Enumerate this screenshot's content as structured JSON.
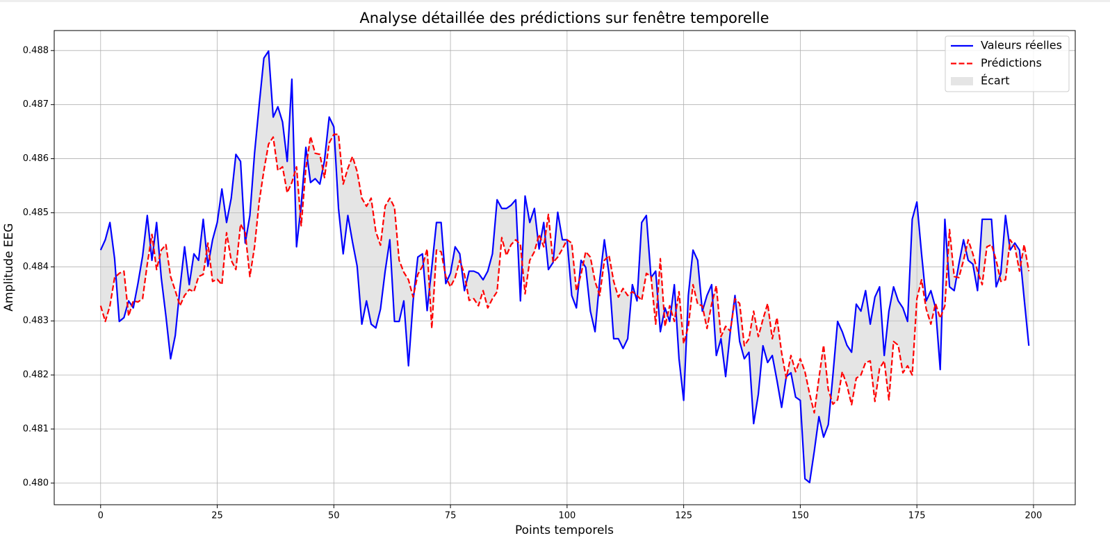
{
  "chart_data": {
    "type": "line",
    "title": "Analyse détaillée des prédictions sur fenêtre temporelle",
    "xlabel": "Points temporels",
    "ylabel": "Amplitude EEG",
    "x": [
      0,
      1,
      2,
      3,
      4,
      5,
      6,
      7,
      8,
      9,
      10,
      11,
      12,
      13,
      14,
      15,
      16,
      17,
      18,
      19,
      20,
      21,
      22,
      23,
      24,
      25,
      26,
      27,
      28,
      29,
      30,
      31,
      32,
      33,
      34,
      35,
      36,
      37,
      38,
      39,
      40,
      41,
      42,
      43,
      44,
      45,
      46,
      47,
      48,
      49,
      50,
      51,
      52,
      53,
      54,
      55,
      56,
      57,
      58,
      59,
      60,
      61,
      62,
      63,
      64,
      65,
      66,
      67,
      68,
      69,
      70,
      71,
      72,
      73,
      74,
      75,
      76,
      77,
      78,
      79,
      80,
      81,
      82,
      83,
      84,
      85,
      86,
      87,
      88,
      89,
      90,
      91,
      92,
      93,
      94,
      95,
      96,
      97,
      98,
      99,
      100,
      101,
      102,
      103,
      104,
      105,
      106,
      107,
      108,
      109,
      110,
      111,
      112,
      113,
      114,
      115,
      116,
      117,
      118,
      119,
      120,
      121,
      122,
      123,
      124,
      125,
      126,
      127,
      128,
      129,
      130,
      131,
      132,
      133,
      134,
      135,
      136,
      137,
      138,
      139,
      140,
      141,
      142,
      143,
      144,
      145,
      146,
      147,
      148,
      149,
      150,
      151,
      152,
      153,
      154,
      155,
      156,
      157,
      158,
      159,
      160,
      161,
      162,
      163,
      164,
      165,
      166,
      167,
      168,
      169,
      170,
      171,
      172,
      173,
      174,
      175,
      176,
      177,
      178,
      179,
      180,
      181,
      182,
      183,
      184,
      185,
      186,
      187,
      188,
      189,
      190,
      191,
      192,
      193,
      194,
      195,
      196,
      197,
      198,
      199
    ],
    "series": [
      {
        "name": "Valeurs réelles",
        "color": "#0000ff",
        "linestyle": "solid",
        "values": [
          0.48431,
          0.4845,
          0.48482,
          0.48415,
          0.48299,
          0.48306,
          0.48337,
          0.48324,
          0.48369,
          0.4842,
          0.48495,
          0.48412,
          0.48482,
          0.4838,
          0.48309,
          0.4823,
          0.48273,
          0.4836,
          0.48437,
          0.48367,
          0.48424,
          0.48412,
          0.48488,
          0.48401,
          0.4845,
          0.48482,
          0.48544,
          0.48482,
          0.48527,
          0.48608,
          0.48595,
          0.48444,
          0.48495,
          0.4861,
          0.487,
          0.48786,
          0.48799,
          0.48677,
          0.48696,
          0.48668,
          0.48595,
          0.48747,
          0.48437,
          0.48514,
          0.48621,
          0.48556,
          0.48563,
          0.48553,
          0.48597,
          0.48677,
          0.48659,
          0.48508,
          0.48424,
          0.48495,
          0.48446,
          0.48401,
          0.48294,
          0.48337,
          0.48294,
          0.48287,
          0.48322,
          0.48392,
          0.4845,
          0.48299,
          0.48299,
          0.48337,
          0.48217,
          0.48337,
          0.48418,
          0.48424,
          0.48319,
          0.48399,
          0.48482,
          0.48482,
          0.48369,
          0.48388,
          0.48437,
          0.48424,
          0.48356,
          0.48392,
          0.48392,
          0.48388,
          0.48376,
          0.48392,
          0.48424,
          0.48524,
          0.48508,
          0.48508,
          0.48514,
          0.48524,
          0.48337,
          0.48531,
          0.48482,
          0.48508,
          0.48433,
          0.48482,
          0.48395,
          0.48408,
          0.48501,
          0.4845,
          0.4845,
          0.48347,
          0.48324,
          0.48412,
          0.48399,
          0.48318,
          0.4828,
          0.48376,
          0.4845,
          0.48386,
          0.48267,
          0.48267,
          0.48249,
          0.48267,
          0.48367,
          0.48337,
          0.48482,
          0.48495,
          0.4838,
          0.48392,
          0.4828,
          0.48324,
          0.48299,
          0.48367,
          0.4823,
          0.48153,
          0.48347,
          0.48431,
          0.48412,
          0.48318,
          0.48347,
          0.48367,
          0.48236,
          0.48267,
          0.48197,
          0.4828,
          0.48347,
          0.48262,
          0.4823,
          0.48242,
          0.4811,
          0.48164,
          0.48254,
          0.48223,
          0.48236,
          0.4819,
          0.4814,
          0.48197,
          0.48204,
          0.48159,
          0.48153,
          0.48008,
          0.48001,
          0.48059,
          0.48123,
          0.48085,
          0.48108,
          0.482,
          0.48299,
          0.4828,
          0.48255,
          0.48242,
          0.48331,
          0.48318,
          0.48356,
          0.48294,
          0.48344,
          0.48363,
          0.48236,
          0.48318,
          0.48363,
          0.48337,
          0.48324,
          0.48299,
          0.48488,
          0.4852,
          0.48424,
          0.48337,
          0.48356,
          0.48324,
          0.4821,
          0.48488,
          0.48363,
          0.48356,
          0.48405,
          0.4845,
          0.48412,
          0.48405,
          0.48356,
          0.48488,
          0.48488,
          0.48488,
          0.48363,
          0.48388,
          0.48495,
          0.48431,
          0.48444,
          0.48431,
          0.48341,
          0.48254
        ]
      },
      {
        "name": "Prédictions",
        "color": "#ff0000",
        "linestyle": "dashed",
        "values": [
          0.48328,
          0.48299,
          0.48328,
          0.4838,
          0.48388,
          0.48392,
          0.48309,
          0.48337,
          0.48335,
          0.48341,
          0.48405,
          0.4846,
          0.48395,
          0.48431,
          0.48441,
          0.48382,
          0.48356,
          0.48328,
          0.48347,
          0.48358,
          0.48354,
          0.48382,
          0.48386,
          0.48444,
          0.48373,
          0.48377,
          0.48367,
          0.48463,
          0.48412,
          0.48395,
          0.48479,
          0.48463,
          0.48382,
          0.48437,
          0.48521,
          0.48578,
          0.48627,
          0.4864,
          0.48578,
          0.48585,
          0.48537,
          0.48556,
          0.48585,
          0.48476,
          0.48582,
          0.48641,
          0.4861,
          0.48608,
          0.48565,
          0.48629,
          0.48645,
          0.48645,
          0.48553,
          0.48582,
          0.48604,
          0.48576,
          0.48527,
          0.48512,
          0.48527,
          0.48465,
          0.4844,
          0.48512,
          0.48527,
          0.4851,
          0.48412,
          0.4839,
          0.48376,
          0.48344,
          0.48386,
          0.48401,
          0.48433,
          0.48286,
          0.48431,
          0.48428,
          0.48382,
          0.48363,
          0.4838,
          0.48412,
          0.48386,
          0.48338,
          0.48341,
          0.48328,
          0.48356,
          0.48324,
          0.48341,
          0.48354,
          0.48454,
          0.48421,
          0.48441,
          0.4845,
          0.48441,
          0.4835,
          0.48412,
          0.48428,
          0.4846,
          0.48437,
          0.48497,
          0.48408,
          0.48418,
          0.48433,
          0.4845,
          0.48444,
          0.48356,
          0.48386,
          0.48428,
          0.48418,
          0.48373,
          0.48347,
          0.48412,
          0.48421,
          0.48373,
          0.48344,
          0.4836,
          0.48347,
          0.48354,
          0.48347,
          0.48338,
          0.48388,
          0.48382,
          0.48294,
          0.48415,
          0.4829,
          0.48328,
          0.48299,
          0.48354,
          0.48258,
          0.4829,
          0.48367,
          0.48331,
          0.48328,
          0.48286,
          0.48331,
          0.48365,
          0.48271,
          0.4829,
          0.48281,
          0.48341,
          0.48332,
          0.48254,
          0.48267,
          0.48318,
          0.48271,
          0.48303,
          0.48332,
          0.48267,
          0.48306,
          0.48241,
          0.48194,
          0.48236,
          0.48206,
          0.4823,
          0.48206,
          0.48165,
          0.4813,
          0.48194,
          0.48255,
          0.48173,
          0.48146,
          0.48154,
          0.48206,
          0.48181,
          0.48145,
          0.48194,
          0.482,
          0.48223,
          0.48226,
          0.48151,
          0.48212,
          0.48226,
          0.48154,
          0.48262,
          0.48255,
          0.48204,
          0.48217,
          0.482,
          0.48341,
          0.48376,
          0.48322,
          0.48294,
          0.48332,
          0.48305,
          0.48328,
          0.48469,
          0.48382,
          0.4838,
          0.48412,
          0.4845,
          0.48424,
          0.48392,
          0.48367,
          0.48437,
          0.48441,
          0.48412,
          0.48373,
          0.48376,
          0.4845,
          0.48437,
          0.48392,
          0.48441,
          0.48392
        ]
      }
    ],
    "fill": {
      "name": "Écart",
      "color": "#cccccc",
      "opacity": 0.5
    },
    "xlim": [
      -9.95,
      208.95
    ],
    "xticks": [
      0,
      25,
      50,
      75,
      100,
      125,
      150,
      175,
      200
    ],
    "ylim": [
      0.4796,
      0.48837
    ],
    "yticks": [
      {
        "value": 0.48,
        "label": "0.480"
      },
      0.481,
      0.482,
      0.483,
      0.484,
      0.485,
      0.486,
      0.487,
      0.488
    ],
    "grid": true,
    "legend": "upper right"
  }
}
